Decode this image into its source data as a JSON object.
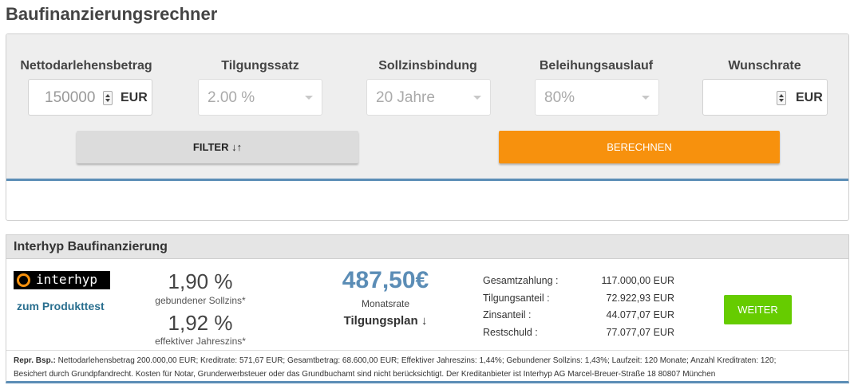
{
  "page_title": "Baufinanzierungsrechner",
  "calculator": {
    "fields": {
      "loan_amount": {
        "label": "Nettodarlehensbetrag",
        "value": "150000",
        "unit": "EUR"
      },
      "repayment_rate": {
        "label": "Tilgungssatz",
        "value": "2.00 %"
      },
      "fixed_interest": {
        "label": "Sollzinsbindung",
        "value": "20 Jahre"
      },
      "loan_to_value": {
        "label": "Beleihungsauslauf",
        "value": "80%"
      },
      "desired_rate": {
        "label": "Wunschrate",
        "value": "",
        "unit": "EUR"
      }
    },
    "filter_label": "FILTER ↓↑",
    "calculate_label": "BERECHNEN",
    "colors": {
      "accent": "#f7910d",
      "border_blue": "#5b8db6"
    }
  },
  "offer": {
    "title": "Interhyp Baufinanzierung",
    "logo_text": "interhyp",
    "product_test_label": "zum Produkttest",
    "bound_rate": {
      "value": "1,90 %",
      "label": "gebundener Sollzins*"
    },
    "effective_rate": {
      "value": "1,92 %",
      "label": "effektiver Jahreszins*"
    },
    "monthly_rate": {
      "value": "487,50€",
      "label": "Monatsrate"
    },
    "repayment_plan_label": "Tilgungsplan ↓",
    "summary": [
      {
        "label": "Gesamtzahlung :",
        "value": "117.000,00 EUR"
      },
      {
        "label": "Tilgungsanteil :",
        "value": "72.922,93 EUR"
      },
      {
        "label": "Zinsanteil :",
        "value": "44.077,07 EUR"
      },
      {
        "label": "Restschuld :",
        "value": "77.077,07 EUR"
      }
    ],
    "weiter_label": "WEITER",
    "disclaimer_prefix": "Repr. Bsp.:",
    "disclaimer_line1": " Nettodarlehensbetrag 200.000,00 EUR; Kreditrate: 571,67 EUR; Gesamtbetrag: 68.600,00 EUR; Effektiver Jahreszins: 1,44%; Gebundener Sollzins: 1,43%; Laufzeit: 120 Monate; Anzahl Kreditraten: 120;",
    "disclaimer_line2": "Besichert durch Grundpfandrecht. Kosten für Notar, Grunderwerbsteuer oder das Grundbuchamt sind nicht berücksichtigt. Der Kreditanbieter ist Interhyp AG Marcel-Breuer-Straße 18 80807 München"
  }
}
